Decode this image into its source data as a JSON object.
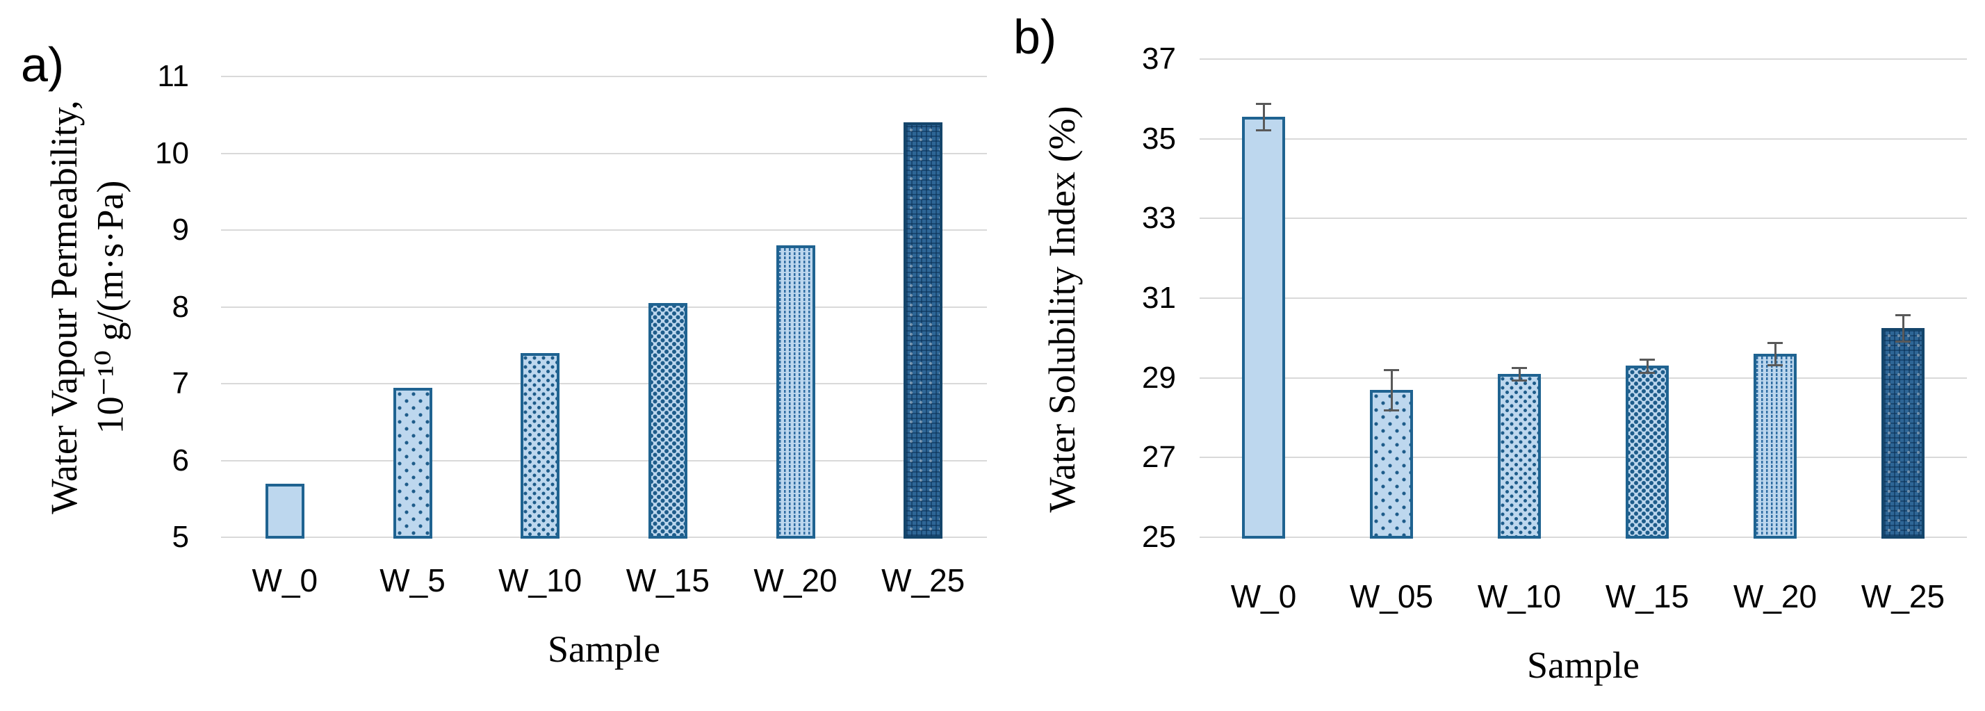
{
  "figure": {
    "background": "#FFFFFF"
  },
  "colors": {
    "bar_fill_light": "#BDD7EE",
    "bar_fill_dark": "#2E6696",
    "bar_border": "#1F6391",
    "bar_border_dark": "#14456B",
    "pattern_dot": "#1E5C8A",
    "gridline": "#D9D9D9",
    "error_bar": "#595959",
    "text": "#000000"
  },
  "chart_data": [
    {
      "id": "a",
      "type": "bar",
      "panel_label": "a)",
      "title": "",
      "xlabel": "Sample",
      "ylabel": "Water Vapour Permeability, 10⁻¹⁰ g/(m·s·Pa)",
      "ylabel_lines": [
        "Water Vapour Permeability,",
        "10⁻¹⁰ g/(m·s·Pa)"
      ],
      "categories": [
        "W_0",
        "W_5",
        "W_10",
        "W_15",
        "W_20",
        "W_25"
      ],
      "values": [
        5.7,
        6.95,
        7.4,
        8.05,
        8.8,
        10.4
      ],
      "errors": null,
      "patterns": [
        "solid",
        "dots-sparse",
        "dots-dense",
        "checker",
        "vertical-stripes",
        "weave-dark"
      ],
      "ylim": [
        5,
        11
      ],
      "yticks": [
        5,
        6,
        7,
        8,
        9,
        10,
        11
      ],
      "grid": true,
      "legend": "none"
    },
    {
      "id": "b",
      "type": "bar",
      "panel_label": "b)",
      "title": "",
      "xlabel": "Sample",
      "ylabel": "Water Solubility Index (%)",
      "ylabel_lines": [
        "Water Solubility Index (%)"
      ],
      "categories": [
        "W_0",
        "W_05",
        "W_10",
        "W_15",
        "W_20",
        "W_25"
      ],
      "values": [
        35.55,
        28.7,
        29.1,
        29.3,
        29.6,
        30.25
      ],
      "errors": [
        0.33,
        0.5,
        0.15,
        0.17,
        0.28,
        0.33
      ],
      "patterns": [
        "solid",
        "dots-sparse",
        "dots-dense",
        "checker",
        "vertical-stripes",
        "weave-dark"
      ],
      "ylim": [
        25,
        37
      ],
      "yticks": [
        25,
        27,
        29,
        31,
        33,
        35,
        37
      ],
      "grid": true,
      "legend": "none"
    }
  ]
}
